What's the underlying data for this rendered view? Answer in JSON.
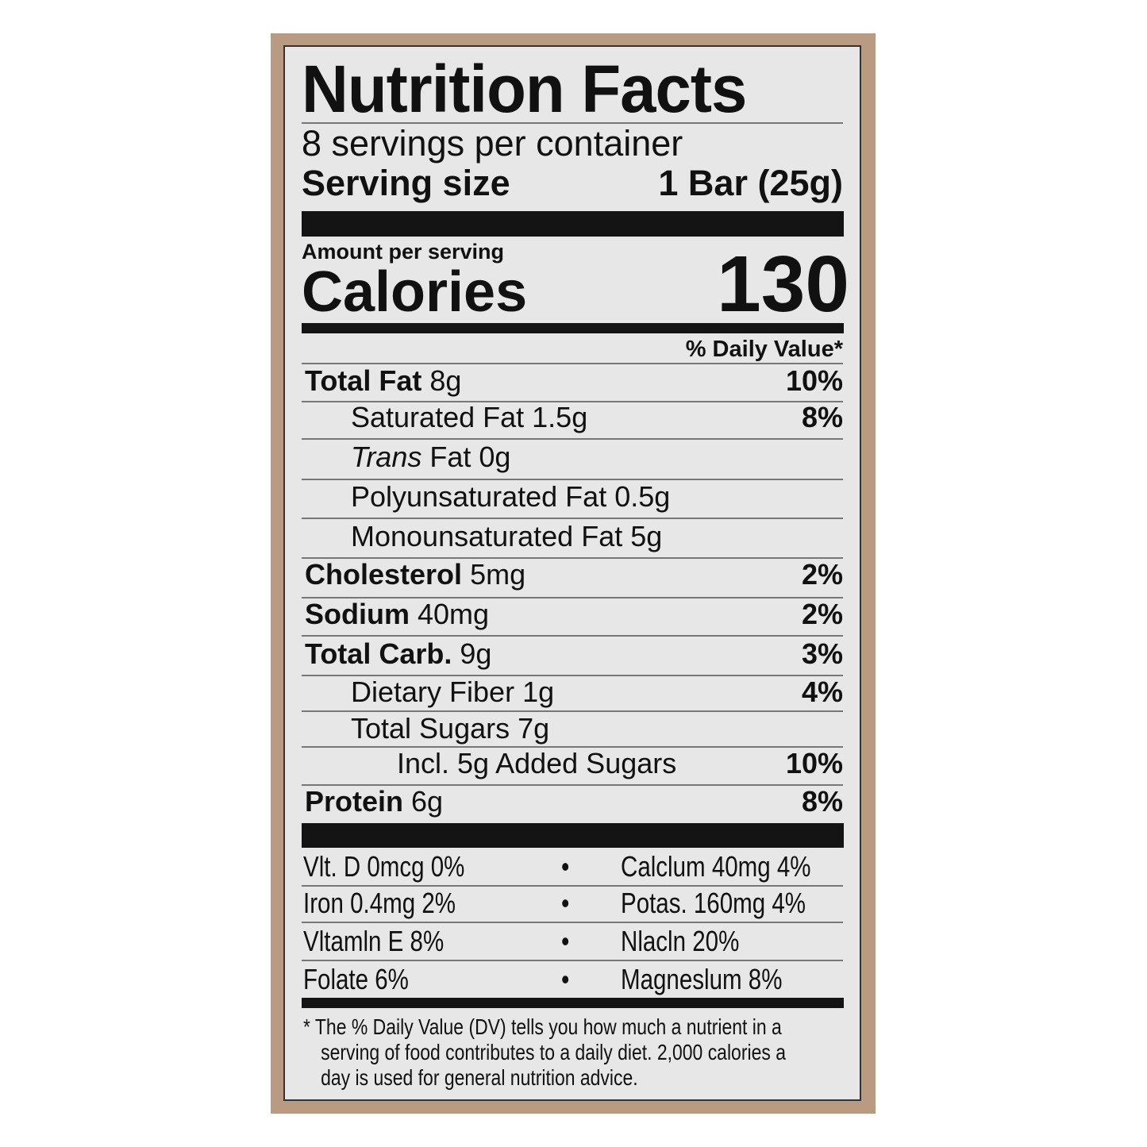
{
  "label": {
    "title": "Nutrition Facts",
    "servings_per_container": "8 servings per container",
    "serving_size_label": "Serving size",
    "serving_size_value": "1 Bar (25g)",
    "amount_per_serving": "Amount per serving",
    "calories_label": "Calories",
    "calories_value": "130",
    "daily_value_header": "% Daily Value*",
    "nutrients": [
      {
        "name": "Total Fat",
        "amount": "8g",
        "dv": "10%"
      },
      {
        "name": "Saturated Fat",
        "amount": "1.5g",
        "dv": "8%"
      },
      {
        "name": "Trans",
        "suffix": "Fat 0g",
        "dv": ""
      },
      {
        "name": "Polyunsaturated Fat",
        "amount": "0.5g",
        "dv": ""
      },
      {
        "name": "Monounsaturated Fat",
        "amount": "5g",
        "dv": ""
      },
      {
        "name": "Cholesterol",
        "amount": "5mg",
        "dv": "2%"
      },
      {
        "name": "Sodium",
        "amount": "40mg",
        "dv": "2%"
      },
      {
        "name": "Total Carb.",
        "amount": "9g",
        "dv": "3%"
      },
      {
        "name": "Dietary Fiber",
        "amount": "1g",
        "dv": "4%"
      },
      {
        "name": "Total Sugars",
        "amount": "7g",
        "dv": ""
      },
      {
        "name": "Incl. 5g Added Sugars",
        "amount": "",
        "dv": "10%"
      },
      {
        "name": "Protein",
        "amount": "6g",
        "dv": "8%"
      }
    ],
    "vitamins": [
      {
        "left": "Vlt. D 0mcg 0%",
        "right": "Calclum 40mg 4%"
      },
      {
        "left": "Iron 0.4mg 2%",
        "right": "Potas. 160mg 4%"
      },
      {
        "left": "Vltamln E 8%",
        "right": "Nlacln 20%"
      },
      {
        "left": "Folate 6%",
        "right": "Magneslum 8%"
      }
    ],
    "separator": "•",
    "footnote": [
      "* The % Daily Value (DV) tells you how much a nutrient in a",
      "serving of food contributes to a daily diet. 2,000 calories a",
      "day is used for general nutrition advice."
    ]
  },
  "colors": {
    "package_border": "#b99b81",
    "label_background": "#e7e7e7",
    "ink": "#111111"
  }
}
